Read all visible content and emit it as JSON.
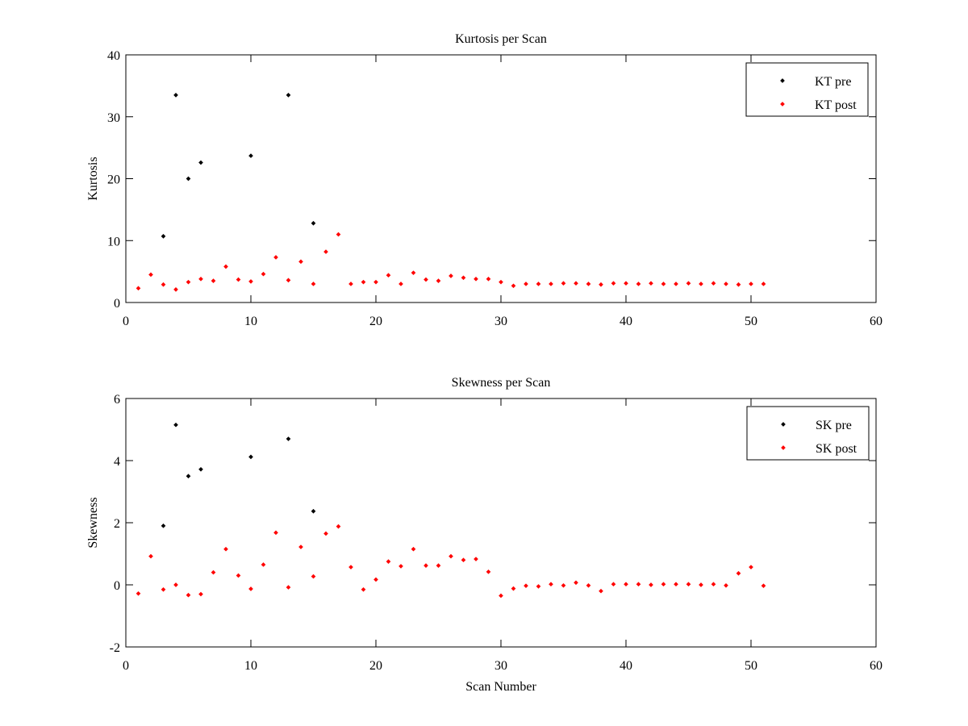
{
  "colors": {
    "pre": "#000000",
    "post": "#ff0000",
    "axis": "#000000",
    "background": "#ffffff"
  },
  "chart_data": [
    {
      "type": "scatter",
      "title": "Kurtosis per Scan",
      "xlabel": "",
      "ylabel": "Kurtosis",
      "xlim": [
        0,
        60
      ],
      "ylim": [
        0,
        40
      ],
      "xticks": [
        0,
        10,
        20,
        30,
        40,
        50,
        60
      ],
      "yticks": [
        0,
        10,
        20,
        30,
        40
      ],
      "grid": false,
      "legend_position": "top-right",
      "series": [
        {
          "name": "KT pre",
          "color": "#000000",
          "x": [
            3,
            4,
            5,
            6,
            10,
            13,
            15
          ],
          "y": [
            10.7,
            33.5,
            20.0,
            22.6,
            23.7,
            33.5,
            12.8
          ]
        },
        {
          "name": "KT post",
          "color": "#ff0000",
          "x": [
            1,
            2,
            3,
            4,
            5,
            6,
            7,
            8,
            9,
            10,
            11,
            12,
            13,
            14,
            15,
            16,
            17,
            18,
            19,
            20,
            21,
            22,
            23,
            24,
            25,
            26,
            27,
            28,
            29,
            30,
            31,
            32,
            33,
            34,
            35,
            36,
            37,
            38,
            39,
            40,
            41,
            42,
            43,
            44,
            45,
            46,
            47,
            48,
            49,
            50,
            51
          ],
          "y": [
            2.3,
            4.5,
            2.9,
            2.1,
            3.3,
            3.8,
            3.5,
            5.8,
            3.7,
            3.4,
            4.6,
            7.3,
            3.6,
            6.6,
            3.0,
            8.2,
            11.0,
            3.0,
            3.3,
            3.3,
            4.4,
            3.0,
            4.8,
            3.7,
            3.5,
            4.3,
            4.0,
            3.8,
            3.8,
            3.3,
            2.7,
            3.0,
            3.0,
            3.0,
            3.1,
            3.1,
            3.0,
            2.9,
            3.1,
            3.1,
            3.0,
            3.1,
            3.0,
            3.0,
            3.1,
            3.0,
            3.1,
            3.0,
            2.9,
            3.0,
            3.0
          ]
        }
      ]
    },
    {
      "type": "scatter",
      "title": "Skewness per Scan",
      "xlabel": "Scan Number",
      "ylabel": "Skewness",
      "xlim": [
        0,
        60
      ],
      "ylim": [
        -2,
        6
      ],
      "xticks": [
        0,
        10,
        20,
        30,
        40,
        50,
        60
      ],
      "yticks": [
        -2,
        0,
        2,
        4,
        6
      ],
      "grid": false,
      "legend_position": "top-right",
      "series": [
        {
          "name": "SK pre",
          "color": "#000000",
          "x": [
            3,
            4,
            5,
            6,
            10,
            13,
            15
          ],
          "y": [
            1.9,
            5.15,
            3.5,
            3.72,
            4.12,
            4.7,
            2.37
          ]
        },
        {
          "name": "SK post",
          "color": "#ff0000",
          "x": [
            1,
            2,
            3,
            4,
            5,
            6,
            7,
            8,
            9,
            10,
            11,
            12,
            13,
            14,
            15,
            16,
            17,
            18,
            19,
            20,
            21,
            22,
            23,
            24,
            25,
            26,
            27,
            28,
            29,
            30,
            31,
            32,
            33,
            34,
            35,
            36,
            37,
            38,
            39,
            40,
            41,
            42,
            43,
            44,
            45,
            46,
            47,
            48,
            49,
            50,
            51
          ],
          "y": [
            -0.28,
            0.92,
            -0.15,
            0.0,
            -0.33,
            -0.3,
            0.4,
            1.15,
            0.3,
            -0.13,
            0.65,
            1.68,
            -0.08,
            1.22,
            0.27,
            1.65,
            1.88,
            0.57,
            -0.15,
            0.17,
            0.75,
            0.6,
            1.15,
            0.62,
            0.62,
            0.92,
            0.8,
            0.83,
            0.42,
            -0.35,
            -0.12,
            -0.03,
            -0.05,
            0.02,
            -0.02,
            0.07,
            -0.02,
            -0.2,
            0.02,
            0.02,
            0.02,
            0.0,
            0.02,
            0.02,
            0.02,
            0.0,
            0.02,
            -0.02,
            0.37,
            0.57,
            -0.03
          ]
        }
      ]
    }
  ]
}
